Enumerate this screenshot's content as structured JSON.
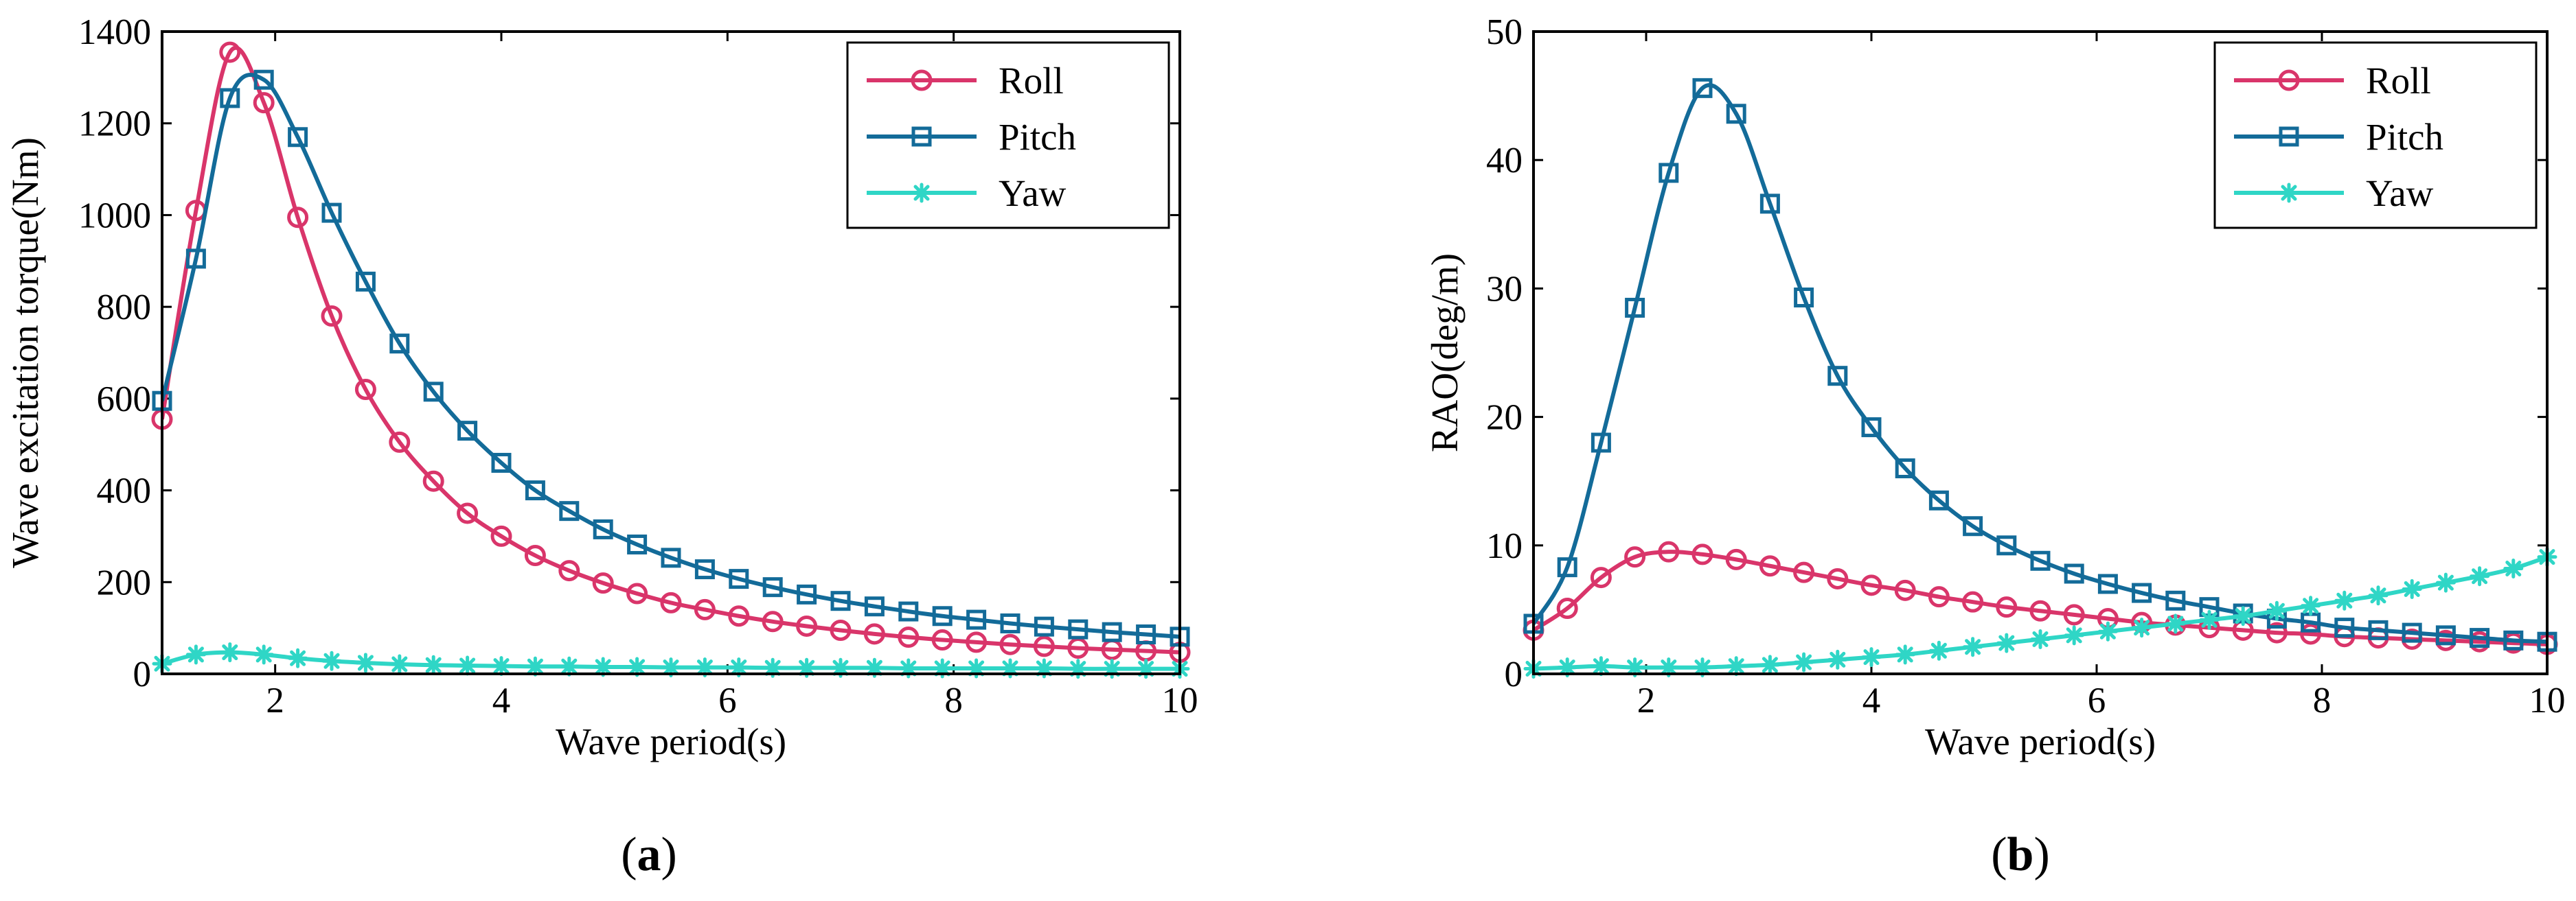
{
  "chart_data": [
    {
      "type": "line",
      "panel_label": "a",
      "xlabel": "Wave period(s)",
      "ylabel": "Wave excitation torque(Nm)",
      "xlim": [
        1,
        10
      ],
      "ylim": [
        0,
        1400
      ],
      "xticks": [
        2,
        4,
        6,
        8,
        10
      ],
      "yticks": [
        0,
        200,
        400,
        600,
        800,
        1000,
        1200,
        1400
      ],
      "legend_position": "top-right",
      "series": [
        {
          "name": "Roll",
          "color": "#d9356a",
          "marker": "circle",
          "x": [
            1.0,
            1.3,
            1.6,
            1.9,
            2.2,
            2.5,
            2.8,
            3.1,
            3.4,
            3.7,
            4.0,
            4.3,
            4.6,
            4.9,
            5.2,
            5.5,
            5.8,
            6.1,
            6.4,
            6.7,
            7.0,
            7.3,
            7.6,
            7.9,
            8.2,
            8.5,
            8.8,
            9.1,
            9.4,
            9.7,
            10.0
          ],
          "y": [
            555,
            1010,
            1355,
            1245,
            995,
            780,
            620,
            505,
            420,
            350,
            300,
            258,
            225,
            198,
            175,
            155,
            140,
            126,
            114,
            104,
            95,
            87,
            80,
            74,
            69,
            64,
            60,
            56,
            53,
            50,
            47
          ]
        },
        {
          "name": "Pitch",
          "color": "#136b99",
          "marker": "square",
          "x": [
            1.0,
            1.3,
            1.6,
            1.9,
            2.2,
            2.5,
            2.8,
            3.1,
            3.4,
            3.7,
            4.0,
            4.3,
            4.6,
            4.9,
            5.2,
            5.5,
            5.8,
            6.1,
            6.4,
            6.7,
            7.0,
            7.3,
            7.6,
            7.9,
            8.2,
            8.5,
            8.8,
            9.1,
            9.4,
            9.7,
            10.0
          ],
          "y": [
            595,
            905,
            1255,
            1295,
            1170,
            1005,
            855,
            720,
            615,
            530,
            460,
            400,
            355,
            315,
            282,
            253,
            228,
            207,
            189,
            173,
            159,
            147,
            136,
            126,
            118,
            110,
            103,
            97,
            91,
            86,
            81
          ]
        },
        {
          "name": "Yaw",
          "color": "#2fd6c6",
          "marker": "asterisk",
          "x": [
            1.0,
            1.3,
            1.6,
            1.9,
            2.2,
            2.5,
            2.8,
            3.1,
            3.4,
            3.7,
            4.0,
            4.3,
            4.6,
            4.9,
            5.2,
            5.5,
            5.8,
            6.1,
            6.4,
            6.7,
            7.0,
            7.3,
            7.6,
            7.9,
            8.2,
            8.5,
            8.8,
            9.1,
            9.4,
            9.7,
            10.0
          ],
          "y": [
            22,
            42,
            47,
            42,
            34,
            28,
            24,
            21,
            19,
            18,
            17,
            16,
            16,
            15,
            15,
            14,
            14,
            14,
            13,
            13,
            13,
            13,
            12,
            12,
            12,
            12,
            12,
            11,
            11,
            11,
            11
          ]
        }
      ]
    },
    {
      "type": "line",
      "panel_label": "b",
      "xlabel": "Wave period(s)",
      "ylabel": "RAO(deg/m)",
      "xlim": [
        1,
        10
      ],
      "ylim": [
        0,
        50
      ],
      "xticks": [
        2,
        4,
        6,
        8,
        10
      ],
      "yticks": [
        0,
        10,
        20,
        30,
        40,
        50
      ],
      "legend_position": "top-right",
      "series": [
        {
          "name": "Roll",
          "color": "#d9356a",
          "marker": "circle",
          "x": [
            1.0,
            1.3,
            1.6,
            1.9,
            2.2,
            2.5,
            2.8,
            3.1,
            3.4,
            3.7,
            4.0,
            4.3,
            4.6,
            4.9,
            5.2,
            5.5,
            5.8,
            6.1,
            6.4,
            6.7,
            7.0,
            7.3,
            7.6,
            7.9,
            8.2,
            8.5,
            8.8,
            9.1,
            9.4,
            9.7,
            10.0
          ],
          "y": [
            3.4,
            5.1,
            7.5,
            9.1,
            9.5,
            9.3,
            8.9,
            8.4,
            7.9,
            7.4,
            6.9,
            6.5,
            6.0,
            5.6,
            5.2,
            4.9,
            4.6,
            4.3,
            4.0,
            3.8,
            3.6,
            3.4,
            3.2,
            3.1,
            2.9,
            2.8,
            2.7,
            2.6,
            2.5,
            2.4,
            2.3
          ]
        },
        {
          "name": "Pitch",
          "color": "#136b99",
          "marker": "square",
          "x": [
            1.0,
            1.3,
            1.6,
            1.9,
            2.2,
            2.5,
            2.8,
            3.1,
            3.4,
            3.7,
            4.0,
            4.3,
            4.6,
            4.9,
            5.2,
            5.5,
            5.8,
            6.1,
            6.4,
            6.7,
            7.0,
            7.3,
            7.6,
            7.9,
            8.2,
            8.5,
            8.8,
            9.1,
            9.4,
            9.7,
            10.0
          ],
          "y": [
            3.9,
            8.3,
            18.0,
            28.5,
            39.0,
            45.6,
            43.6,
            36.6,
            29.3,
            23.2,
            19.2,
            16.0,
            13.5,
            11.5,
            10.0,
            8.8,
            7.8,
            7.0,
            6.3,
            5.7,
            5.2,
            4.7,
            4.3,
            4.0,
            3.6,
            3.4,
            3.2,
            3.0,
            2.8,
            2.6,
            2.5
          ]
        },
        {
          "name": "Yaw",
          "color": "#2fd6c6",
          "marker": "asterisk",
          "x": [
            1.0,
            1.3,
            1.6,
            1.9,
            2.2,
            2.5,
            2.8,
            3.1,
            3.4,
            3.7,
            4.0,
            4.3,
            4.6,
            4.9,
            5.2,
            5.5,
            5.8,
            6.1,
            6.4,
            6.7,
            7.0,
            7.3,
            7.6,
            7.9,
            8.2,
            8.5,
            8.8,
            9.1,
            9.4,
            9.7,
            10.0
          ],
          "y": [
            0.4,
            0.5,
            0.6,
            0.5,
            0.5,
            0.5,
            0.6,
            0.7,
            0.9,
            1.1,
            1.3,
            1.5,
            1.8,
            2.1,
            2.4,
            2.7,
            3.0,
            3.3,
            3.6,
            3.9,
            4.2,
            4.5,
            4.9,
            5.3,
            5.7,
            6.1,
            6.6,
            7.1,
            7.6,
            8.2,
            9.1
          ]
        }
      ]
    }
  ],
  "captions": {
    "a": {
      "open": "(",
      "letter": "a",
      "close": ")"
    },
    "b": {
      "open": "(",
      "letter": "b",
      "close": ")"
    }
  }
}
